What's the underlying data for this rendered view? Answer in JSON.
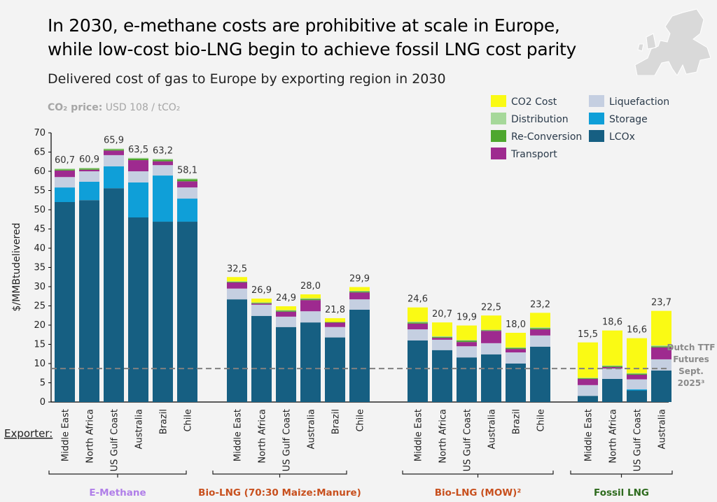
{
  "header": {
    "title_line1": "In 2030, e-methane costs are prohibitive at scale in Europe,",
    "title_line2": "while low-cost bio-LNG begin to achieve fossil LNG cost parity",
    "subtitle": "Delivered cost of gas to Europe by exporting region in 2030",
    "co2_label": "CO₂ price:",
    "co2_value": "USD 108 / tCO₂",
    "map_icon": "europe-map-icon"
  },
  "chart_data": {
    "type": "bar",
    "stacked": true,
    "title": "Delivered cost of gas to Europe by exporting region in 2030",
    "ylabel": "$/MMBtudelivered",
    "ylim": [
      0,
      70
    ],
    "yticks": [
      0,
      5,
      10,
      15,
      20,
      25,
      30,
      35,
      40,
      45,
      50,
      55,
      60,
      65,
      70
    ],
    "grid": false,
    "legend_placement": "top-right",
    "xaxis_prefix": "Exporter:",
    "segments": [
      {
        "name": "LCOx",
        "color": "#165f82"
      },
      {
        "name": "Storage",
        "color": "#0f9fd8"
      },
      {
        "name": "Liquefaction",
        "color": "#c5cfe1"
      },
      {
        "name": "Transport",
        "color": "#9e2a8f"
      },
      {
        "name": "Re-Conversion",
        "color": "#4ea72e"
      },
      {
        "name": "Distribution",
        "color": "#a6d89a"
      },
      {
        "name": "CO2 Cost",
        "color": "#fafa14"
      }
    ],
    "legend_order": [
      "CO2 Cost",
      "Liquefaction",
      "Distribution",
      "Storage",
      "Re-Conversion",
      "LCOx",
      "Transport"
    ],
    "groups": [
      {
        "name": "E-Methane",
        "color": "#b07ee8",
        "bars": [
          {
            "exporter": "Middle East",
            "total": "60,7",
            "values": [
              52.0,
              3.8,
              2.7,
              1.7,
              0.3,
              0.2,
              0
            ]
          },
          {
            "exporter": "North Africa",
            "total": "60,9",
            "values": [
              52.5,
              4.8,
              2.7,
              0.4,
              0.3,
              0.2,
              0
            ]
          },
          {
            "exporter": "US Gulf Coast",
            "total": "65,9",
            "values": [
              55.6,
              5.7,
              2.9,
              1.2,
              0.3,
              0.2,
              0
            ]
          },
          {
            "exporter": "Australia",
            "total": "63,5",
            "values": [
              48.0,
              9.1,
              2.9,
              2.9,
              0.4,
              0.2,
              0
            ]
          },
          {
            "exporter": "Brazil",
            "total": "63,2",
            "values": [
              46.9,
              12.0,
              2.7,
              1.0,
              0.4,
              0.2,
              0
            ]
          },
          {
            "exporter": "Chile",
            "total": "58,1",
            "values": [
              46.9,
              6.0,
              2.9,
              1.6,
              0.5,
              0.2,
              0
            ]
          }
        ]
      },
      {
        "name": "Bio-LNG (70:30 Maize:Manure)",
        "color": "#c8501e",
        "bars": [
          {
            "exporter": "Middle East",
            "total": "32,5",
            "values": [
              26.7,
              0,
              2.8,
              1.6,
              0.2,
              0.1,
              1.1
            ]
          },
          {
            "exporter": "North Africa",
            "total": "26,9",
            "values": [
              22.4,
              0,
              2.9,
              0.3,
              0.2,
              0.1,
              1.0
            ]
          },
          {
            "exporter": "US Gulf Coast",
            "total": "24,9",
            "values": [
              19.5,
              0,
              2.7,
              1.3,
              0.3,
              0.1,
              1.0
            ]
          },
          {
            "exporter": "Australia",
            "total": "28,0",
            "values": [
              20.7,
              0,
              2.9,
              2.9,
              0.3,
              0.2,
              1.0
            ]
          },
          {
            "exporter": "Brazil",
            "total": "21,8",
            "values": [
              16.8,
              0,
              2.7,
              1.2,
              0.1,
              0,
              1.0
            ]
          },
          {
            "exporter": "Chile",
            "total": "29,9",
            "values": [
              24.0,
              0,
              2.7,
              1.8,
              0.3,
              0.1,
              1.0
            ]
          }
        ]
      },
      {
        "name": "Bio-LNG (MOW)²",
        "color": "#c8501e",
        "bars": [
          {
            "exporter": "Middle East",
            "total": "24,6",
            "values": [
              16.0,
              0,
              2.9,
              1.5,
              0.3,
              0.2,
              3.7
            ]
          },
          {
            "exporter": "North Africa",
            "total": "20,7",
            "values": [
              13.5,
              0,
              2.7,
              0.5,
              0.2,
              0.2,
              3.6
            ]
          },
          {
            "exporter": "US Gulf Coast",
            "total": "19,9",
            "values": [
              11.6,
              0,
              2.9,
              1.1,
              0.4,
              0.1,
              3.8
            ]
          },
          {
            "exporter": "Australia",
            "total": "22,5",
            "values": [
              12.4,
              0,
              2.9,
              3.2,
              0.2,
              0.1,
              3.7
            ]
          },
          {
            "exporter": "Brazil",
            "total": "18,0",
            "values": [
              10.0,
              0,
              2.9,
              0.9,
              0.3,
              0.1,
              3.8
            ]
          },
          {
            "exporter": "Chile",
            "total": "23,2",
            "values": [
              14.4,
              0,
              2.9,
              1.6,
              0.3,
              0.2,
              3.8
            ]
          }
        ]
      },
      {
        "name": "Fossil LNG",
        "color": "#2e6b1e",
        "bars": [
          {
            "exporter": "Middle East",
            "total": "15,5",
            "values": [
              1.6,
              0,
              2.8,
              1.6,
              0.2,
              0.1,
              9.2
            ]
          },
          {
            "exporter": "North Africa",
            "total": "18,6",
            "values": [
              6.0,
              0,
              2.7,
              0.4,
              0.3,
              0.1,
              9.1
            ]
          },
          {
            "exporter": "US Gulf Coast",
            "total": "16,6",
            "values": [
              3.0,
              0.3,
              2.6,
              1.2,
              0.3,
              0.1,
              9.1
            ]
          },
          {
            "exporter": "Australia",
            "total": "23,7",
            "values": [
              8.2,
              0,
              2.9,
              3.1,
              0.3,
              0.2,
              9.0
            ]
          }
        ]
      }
    ],
    "reference_line": {
      "value": 8.7,
      "label": [
        "Dutch TTF",
        "Futures",
        "Sept.",
        "2025³"
      ],
      "style": "dashed",
      "color": "#808080"
    }
  }
}
